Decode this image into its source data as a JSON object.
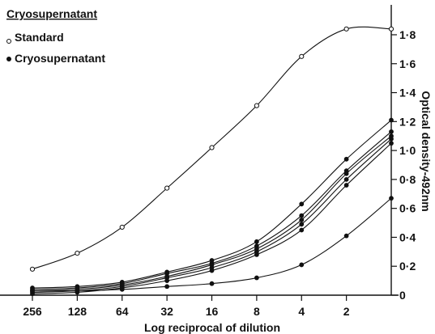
{
  "chart_data": {
    "type": "line",
    "title": "",
    "xlabel": "Log reciprocal of dilution",
    "ylabel": "Optical density-492nm",
    "x_tick_labels": [
      "256",
      "128",
      "64",
      "32",
      "16",
      "8",
      "4",
      "2"
    ],
    "y_tick_labels": [
      "0",
      "0·2",
      "0·4",
      "0·6",
      "0·8",
      "1·0",
      "1·2",
      "1·4",
      "1·6",
      "1·8"
    ],
    "y_ticks": [
      0,
      0.2,
      0.4,
      0.6,
      0.8,
      1.0,
      1.2,
      1.4,
      1.6,
      1.8
    ],
    "ylim": [
      0,
      1.9
    ],
    "x_dilution_points": [
      256,
      128,
      64,
      32,
      16,
      8,
      4,
      2,
      1
    ],
    "grid": false,
    "legend": {
      "title": "Cryosupernatant",
      "entries": [
        {
          "label": "Standard",
          "marker": "open-circle"
        },
        {
          "label": "Cryosupernatant",
          "marker": "filled-circle"
        }
      ]
    },
    "series": [
      {
        "marker": "open",
        "values": [
          0.18,
          0.29,
          0.47,
          0.74,
          1.02,
          1.31,
          1.65,
          1.84,
          1.84
        ]
      },
      {
        "marker": "filled",
        "values": [
          0.05,
          0.06,
          0.09,
          0.16,
          0.24,
          0.37,
          0.63,
          0.94,
          1.21
        ]
      },
      {
        "marker": "filled",
        "values": [
          0.04,
          0.05,
          0.08,
          0.15,
          0.22,
          0.34,
          0.55,
          0.86,
          1.13
        ]
      },
      {
        "marker": "filled",
        "values": [
          0.03,
          0.04,
          0.07,
          0.13,
          0.21,
          0.32,
          0.52,
          0.84,
          1.1
        ]
      },
      {
        "marker": "filled",
        "values": [
          0.02,
          0.03,
          0.06,
          0.12,
          0.19,
          0.3,
          0.49,
          0.8,
          1.08
        ]
      },
      {
        "marker": "filled",
        "values": [
          0.01,
          0.02,
          0.05,
          0.1,
          0.17,
          0.28,
          0.45,
          0.76,
          1.05
        ]
      },
      {
        "marker": "filled",
        "values": [
          0.03,
          0.03,
          0.04,
          0.06,
          0.08,
          0.12,
          0.21,
          0.41,
          0.67
        ]
      }
    ]
  }
}
